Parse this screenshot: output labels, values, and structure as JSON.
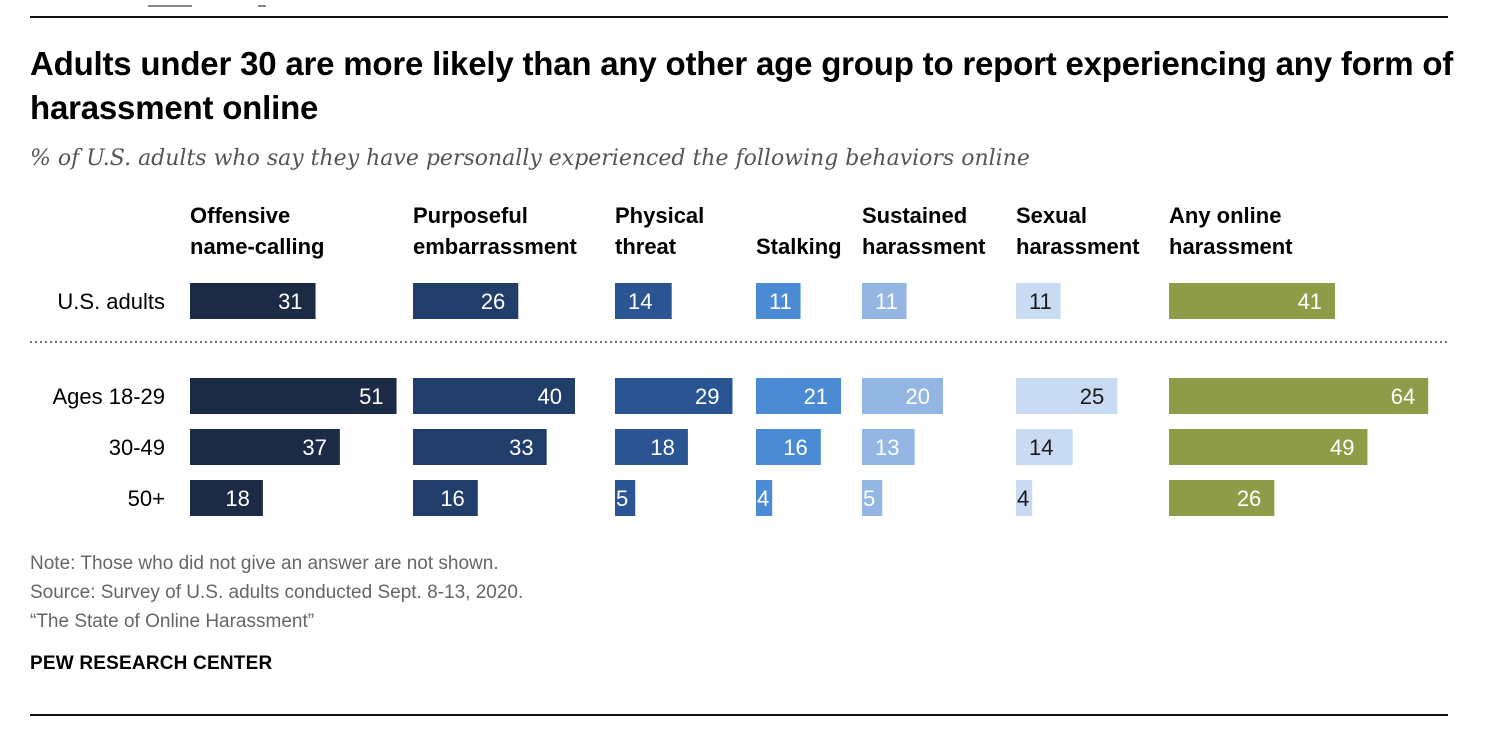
{
  "title": "Adults under 30 are more likely than any other age group to report experiencing any form of harassment online",
  "subtitle": "% of U.S. adults who say they have personally experienced the following behaviors online",
  "chart_data": {
    "type": "bar",
    "orientation": "horizontal-small-multiples",
    "categories": [
      {
        "line1": "Offensive",
        "line2": "name-calling",
        "color": "#1b2a45",
        "text_color": "#ffffff"
      },
      {
        "line1": "Purposeful",
        "line2": "embarrassment",
        "color": "#213e6b",
        "text_color": "#ffffff"
      },
      {
        "line1": "Physical",
        "line2": "threat",
        "color": "#2a5592",
        "text_color": "#ffffff"
      },
      {
        "line1": "",
        "line2": "Stalking",
        "color": "#4a8bd3",
        "text_color": "#ffffff"
      },
      {
        "line1": "Sustained",
        "line2": "harassment",
        "color": "#93b6e3",
        "text_color": "#ffffff"
      },
      {
        "line1": "Sexual",
        "line2": "harassment",
        "color": "#c9dbf3",
        "text_color": "#1a1a1a"
      },
      {
        "line1": "Any online",
        "line2": "harassment",
        "color": "#8e9c48",
        "text_color": "#ffffff"
      }
    ],
    "series": [
      {
        "name": "U.S. adults",
        "values": [
          31,
          26,
          14,
          11,
          11,
          11,
          41
        ]
      },
      {
        "name": "Ages 18-29",
        "values": [
          51,
          40,
          29,
          21,
          20,
          25,
          64
        ]
      },
      {
        "name": "30-49",
        "values": [
          37,
          33,
          18,
          16,
          13,
          14,
          49
        ]
      },
      {
        "name": "50+",
        "values": [
          18,
          16,
          5,
          4,
          5,
          4,
          26
        ]
      }
    ],
    "separator_after_series": 0,
    "xlim": [
      0,
      100
    ]
  },
  "notes": [
    "Note: Those who did not give an answer are not shown.",
    "Source: Survey of U.S. adults conducted Sept. 8-13, 2020.",
    "“The State of Online Harassment”"
  ],
  "brand": "PEW RESEARCH CENTER"
}
